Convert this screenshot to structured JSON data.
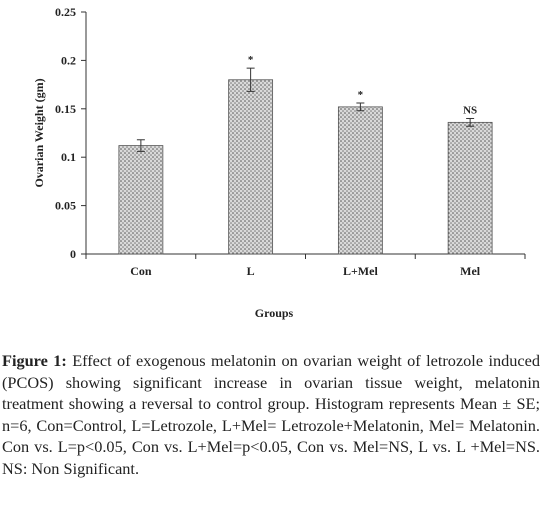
{
  "chart_data": {
    "type": "bar",
    "categories": [
      "Con",
      "L",
      "L+Mel",
      "Mel"
    ],
    "values": [
      0.112,
      0.18,
      0.152,
      0.136
    ],
    "errors": [
      0.006,
      0.012,
      0.004,
      0.004
    ],
    "significance": [
      "",
      "*",
      "*",
      "NS"
    ],
    "xlabel": "Groups",
    "ylabel": "Ovarian Weight (gm)",
    "ylim": [
      0,
      0.25
    ],
    "yticks": [
      0,
      0.05,
      0.1,
      0.15,
      0.2,
      0.25
    ],
    "ytick_labels": [
      "0",
      "0.05",
      "0.1",
      "0.15",
      "0.2",
      "0.25"
    ],
    "grid": false,
    "bar_pattern": "dotted-grey"
  },
  "caption": {
    "label": "Figure 1:",
    "text": "Effect of exogenous melatonin on ovarian weight of letrozole induced (PCOS) showing significant increase in ovarian tissue weight, melatonin treatment showing a reversal to control group. Histogram represents Mean ± SE; n=6, Con=Control, L=Letrozole, L+Mel= Letrozole+Melatonin, Mel= Melatonin. Con vs. L=p<0.05, Con vs. L+Mel=p<0.05, Con vs. Mel=NS, L vs. L +Mel=NS. NS: Non Significant."
  }
}
